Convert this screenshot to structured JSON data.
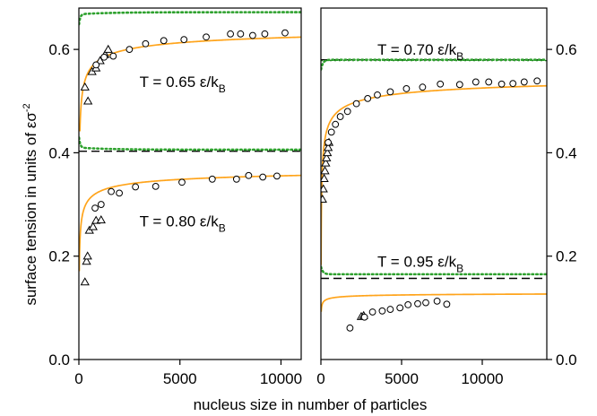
{
  "chart_data": [
    {
      "type": "scatter",
      "panel": "left",
      "xlim": [
        0,
        11000
      ],
      "ylim": [
        0,
        0.68
      ],
      "xticks": [
        0,
        5000,
        10000
      ],
      "yticks": [
        0.0,
        0.2,
        0.4,
        0.6
      ],
      "ytick_labels": [
        "0.0",
        "0.2",
        "0.4",
        "0.6"
      ],
      "xtick_labels": [
        "0",
        "5000",
        "10000"
      ],
      "ylabel": "surface tension in units of εσ",
      "ylabel_sup": "-2",
      "annotations": [
        {
          "prefix": "T = 0.65 ε/k",
          "sub": "B",
          "x": 3000,
          "y": 0.538
        },
        {
          "prefix": "T = 0.80 ε/k",
          "sub": "B",
          "x": 3000,
          "y": 0.268
        }
      ],
      "series": [
        {
          "marker": "triangle",
          "points": [
            [
              300,
              0.527
            ],
            [
              450,
              0.5
            ],
            [
              650,
              0.557
            ],
            [
              850,
              0.564
            ],
            [
              1050,
              0.578
            ],
            [
              1300,
              0.59
            ],
            [
              1450,
              0.6
            ]
          ]
        },
        {
          "marker": "circle",
          "points": [
            [
              850,
              0.57
            ],
            [
              1250,
              0.585
            ],
            [
              1700,
              0.587
            ],
            [
              2500,
              0.6
            ],
            [
              3300,
              0.611
            ],
            [
              4200,
              0.617
            ],
            [
              5200,
              0.619
            ],
            [
              6300,
              0.624
            ],
            [
              7500,
              0.63
            ],
            [
              8000,
              0.63
            ],
            [
              8600,
              0.627
            ],
            [
              9200,
              0.63
            ],
            [
              10200,
              0.632
            ]
          ]
        },
        {
          "marker": "triangle",
          "points": [
            [
              300,
              0.15
            ],
            [
              380,
              0.19
            ],
            [
              430,
              0.2
            ],
            [
              520,
              0.25
            ],
            [
              700,
              0.257
            ],
            [
              850,
              0.269
            ],
            [
              1100,
              0.27
            ]
          ]
        },
        {
          "marker": "circle",
          "points": [
            [
              800,
              0.293
            ],
            [
              1100,
              0.3
            ],
            [
              1600,
              0.325
            ],
            [
              2000,
              0.322
            ],
            [
              2800,
              0.334
            ],
            [
              3800,
              0.335
            ],
            [
              5100,
              0.343
            ],
            [
              6600,
              0.349
            ],
            [
              7800,
              0.349
            ],
            [
              8400,
              0.356
            ],
            [
              9100,
              0.353
            ],
            [
              9800,
              0.355
            ]
          ]
        }
      ],
      "fit_curves": [
        {
          "gamma_inf": 0.66,
          "a": 1.22,
          "n_min": 50,
          "n_max": 11000
        },
        {
          "gamma_inf": 0.382,
          "a": 1.5,
          "n_min": 20,
          "n_max": 11000
        }
      ],
      "dashed_lines": [
        0.681,
        0.403
      ],
      "dotted_curves": [
        {
          "asymptote": 0.672,
          "direction": -1
        },
        {
          "asymptote": 0.406,
          "direction": 1
        }
      ]
    },
    {
      "type": "scatter",
      "panel": "right",
      "xlim": [
        0,
        14000
      ],
      "ylim": [
        0,
        0.68
      ],
      "xticks": [
        0,
        5000,
        10000
      ],
      "yticks": [
        0.0,
        0.2,
        0.4,
        0.6
      ],
      "ytick_labels": [
        "0.0",
        "0.2",
        "0.4",
        "0.6"
      ],
      "xtick_labels": [
        "0",
        "5000",
        "10000"
      ],
      "annotations": [
        {
          "prefix": "T = 0.70 ε/k",
          "sub": "B",
          "x": 3500,
          "y": 0.6
        },
        {
          "prefix": "T = 0.95 ε/k",
          "sub": "B",
          "x": 3500,
          "y": 0.19
        }
      ],
      "series": [
        {
          "marker": "triangle",
          "points": [
            [
              100,
              0.31
            ],
            [
              150,
              0.33
            ],
            [
              200,
              0.35
            ],
            [
              250,
              0.365
            ],
            [
              300,
              0.38
            ],
            [
              350,
              0.39
            ],
            [
              400,
              0.4
            ],
            [
              450,
              0.41
            ],
            [
              500,
              0.42
            ]
          ]
        },
        {
          "marker": "circle",
          "points": [
            [
              450,
              0.42
            ],
            [
              650,
              0.44
            ],
            [
              900,
              0.455
            ],
            [
              1200,
              0.47
            ],
            [
              1650,
              0.48
            ],
            [
              2200,
              0.495
            ],
            [
              2900,
              0.505
            ],
            [
              3500,
              0.512
            ],
            [
              4300,
              0.518
            ],
            [
              5300,
              0.524
            ],
            [
              6300,
              0.527
            ],
            [
              7400,
              0.533
            ],
            [
              8600,
              0.532
            ],
            [
              9600,
              0.537
            ],
            [
              10400,
              0.537
            ],
            [
              11200,
              0.533
            ],
            [
              11900,
              0.534
            ],
            [
              12600,
              0.537
            ],
            [
              13400,
              0.539
            ]
          ]
        },
        {
          "marker": "triangle",
          "points": [
            [
              2500,
              0.083
            ],
            [
              2650,
              0.085
            ]
          ]
        },
        {
          "marker": "circle",
          "points": [
            [
              1800,
              0.061
            ],
            [
              2700,
              0.082
            ],
            [
              3200,
              0.092
            ],
            [
              3800,
              0.094
            ],
            [
              4300,
              0.097
            ],
            [
              4900,
              0.1
            ],
            [
              5400,
              0.106
            ],
            [
              6000,
              0.108
            ],
            [
              6500,
              0.11
            ],
            [
              7200,
              0.113
            ],
            [
              7800,
              0.107
            ]
          ]
        }
      ],
      "fit_curves": [
        {
          "gamma_inf": 0.566,
          "a": 1.55,
          "n_min": 12,
          "n_max": 14000
        },
        {
          "gamma_inf": 0.131,
          "a": 0.8,
          "n_min": 20,
          "n_max": 14000
        }
      ],
      "dashed_lines": [
        0.58,
        0.157
      ],
      "dotted_curves": [
        {
          "asymptote": 0.58,
          "direction": -1,
          "start": 0.56
        },
        {
          "asymptote": 0.165,
          "direction": 1,
          "start": 0.18
        }
      ]
    }
  ],
  "xlabel": "nucleus size in number of particles",
  "colors": {
    "fit": "#FFA41B",
    "dotted": "#2EA12E",
    "dashed": "#000000",
    "dashed_green": "#1E7A1E"
  }
}
